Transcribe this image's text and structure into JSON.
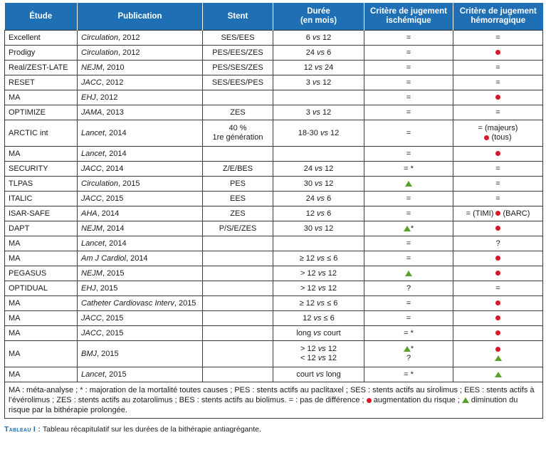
{
  "headers": {
    "etude": "Étude",
    "publication": "Publication",
    "stent": "Stent",
    "duree_1": "Durée",
    "duree_2": "(en mois)",
    "isch_1": "Critère de jugement",
    "isch_2": "ischémique",
    "hemo_1": "Critère de jugement",
    "hemo_2": "hémorragique"
  },
  "rows": [
    {
      "etude": "Excellent",
      "journal": "Circulation",
      "year": ", 2012",
      "stent": "SES/EES",
      "duree": [
        "6 vs 12"
      ],
      "isch": [
        {
          "t": "="
        }
      ],
      "hemo": [
        {
          "t": "="
        }
      ]
    },
    {
      "etude": "Prodigy",
      "journal": "Circulation",
      "year": ", 2012",
      "stent": "PES/EES/ZES",
      "duree": [
        "24 vs 6"
      ],
      "isch": [
        {
          "t": "="
        }
      ],
      "hemo": [
        {
          "icon": "red-dot"
        }
      ]
    },
    {
      "etude": "Real/ZEST-LATE",
      "journal": "NEJM",
      "year": ", 2010",
      "stent": "PES/SES/ZES",
      "duree": [
        "12 vs 24"
      ],
      "isch": [
        {
          "t": "="
        }
      ],
      "hemo": [
        {
          "t": "="
        }
      ]
    },
    {
      "etude": "RESET",
      "journal": "JACC",
      "year": ", 2012",
      "stent": "SES/EES/PES",
      "duree": [
        "3 vs 12"
      ],
      "isch": [
        {
          "t": "="
        }
      ],
      "hemo": [
        {
          "t": "="
        }
      ]
    },
    {
      "etude": "MA",
      "journal": "EHJ",
      "year": ", 2012",
      "stent": "",
      "duree": [
        ""
      ],
      "isch": [
        {
          "t": "="
        }
      ],
      "hemo": [
        {
          "icon": "red-dot"
        }
      ]
    },
    {
      "etude": "OPTIMIZE",
      "journal": "JAMA",
      "year": ", 2013",
      "stent": "ZES",
      "duree": [
        "3 vs 12"
      ],
      "isch": [
        {
          "t": "="
        }
      ],
      "hemo": [
        {
          "t": "="
        }
      ]
    },
    {
      "etude": "ARCTIC int",
      "journal": "Lancet",
      "year": ", 2014",
      "stent_lines": [
        "40 %",
        "1re génération"
      ],
      "duree": [
        "18-30 vs 12"
      ],
      "isch": [
        {
          "t": "="
        }
      ],
      "hemo": [
        {
          "t": "= (majeurs)"
        },
        {
          "icon": "red-dot",
          "t": " (tous)"
        }
      ],
      "cls": "tall"
    },
    {
      "etude": "MA",
      "journal": "Lancet",
      "year": ", 2014",
      "stent": "",
      "duree": [
        ""
      ],
      "isch": [
        {
          "t": "="
        }
      ],
      "hemo": [
        {
          "icon": "red-dot"
        }
      ]
    },
    {
      "etude": "SECURITY",
      "journal": "JACC",
      "year": ", 2014",
      "stent": "Z/E/BES",
      "duree": [
        "24 vs 12"
      ],
      "isch": [
        {
          "t": "= *"
        }
      ],
      "hemo": [
        {
          "t": "="
        }
      ]
    },
    {
      "etude": "TLPAS",
      "journal": "Circulation",
      "year": ", 2015",
      "stent": "PES",
      "duree": [
        "30 vs 12"
      ],
      "isch": [
        {
          "icon": "green-triangle"
        }
      ],
      "hemo": [
        {
          "t": "="
        }
      ]
    },
    {
      "etude": "ITALIC",
      "journal": "JACC",
      "year": ", 2015",
      "stent": "EES",
      "duree": [
        "24 vs 6"
      ],
      "isch": [
        {
          "t": "="
        }
      ],
      "hemo": [
        {
          "t": "="
        }
      ]
    },
    {
      "etude": "ISAR-SAFE",
      "journal": "AHA",
      "year": ", 2014",
      "stent": "ZES",
      "duree": [
        "12 vs 6"
      ],
      "isch": [
        {
          "t": "="
        }
      ],
      "hemo": [
        {
          "t": "= (TIMI) ",
          "icon2": "red-dot",
          "t2": " (BARC)"
        }
      ]
    },
    {
      "etude": "DAPT",
      "journal": "NEJM",
      "year": ", 2014",
      "stent": "P/S/E/ZES",
      "duree": [
        "30 vs 12"
      ],
      "isch": [
        {
          "icon": "green-triangle",
          "t": "*"
        }
      ],
      "hemo": [
        {
          "icon": "red-dot"
        }
      ]
    },
    {
      "etude": "MA",
      "journal": "Lancet",
      "year": ", 2014",
      "stent": "",
      "duree": [
        ""
      ],
      "isch": [
        {
          "t": "="
        }
      ],
      "hemo": [
        {
          "t": "?"
        }
      ]
    },
    {
      "etude": "MA",
      "journal": "Am J Cardiol",
      "year": ", 2014",
      "stent": "",
      "duree": [
        "≥ 12 vs ≤ 6"
      ],
      "isch": [
        {
          "t": "="
        }
      ],
      "hemo": [
        {
          "icon": "red-dot"
        }
      ]
    },
    {
      "etude": "PEGASUS",
      "journal": "NEJM",
      "year": ", 2015",
      "stent": "",
      "duree": [
        "> 12 vs 12"
      ],
      "isch": [
        {
          "icon": "green-triangle"
        }
      ],
      "hemo": [
        {
          "icon": "red-dot"
        }
      ]
    },
    {
      "etude": "OPTIDUAL",
      "journal": "EHJ",
      "year": ", 2015",
      "stent": "",
      "duree": [
        "> 12 vs 12"
      ],
      "isch": [
        {
          "t": "?"
        }
      ],
      "hemo": [
        {
          "t": "="
        }
      ]
    },
    {
      "etude": "MA",
      "journal": "Catheter Cardiovasc Interv",
      "year": ", 2015",
      "stent": "",
      "duree": [
        "≥ 12 vs ≤ 6"
      ],
      "isch": [
        {
          "t": "="
        }
      ],
      "hemo": [
        {
          "icon": "red-dot"
        }
      ]
    },
    {
      "etude": "MA",
      "journal": "JACC",
      "year": ", 2015",
      "stent": "",
      "duree": [
        "12 vs ≤ 6"
      ],
      "isch": [
        {
          "t": "="
        }
      ],
      "hemo": [
        {
          "icon": "red-dot"
        }
      ]
    },
    {
      "etude": "MA",
      "journal": "JACC",
      "year": ", 2015",
      "stent": "",
      "duree": [
        "long vs court"
      ],
      "isch": [
        {
          "t": "= *"
        }
      ],
      "hemo": [
        {
          "icon": "red-dot"
        }
      ]
    },
    {
      "etude": "MA",
      "journal": "BMJ",
      "year": ", 2015",
      "stent": "",
      "duree": [
        "> 12 vs 12",
        "< 12 vs 12"
      ],
      "isch": [
        {
          "icon": "green-triangle",
          "t": "*"
        },
        {
          "t": "?"
        }
      ],
      "hemo": [
        {
          "icon": "red-dot"
        },
        {
          "icon": "green-triangle"
        }
      ],
      "cls": "tall3"
    },
    {
      "etude": "MA",
      "journal": "Lancet",
      "year": ", 2015",
      "stent": "",
      "duree": [
        "court vs long"
      ],
      "isch": [
        {
          "t": "= *"
        }
      ],
      "hemo": [
        {
          "icon": "green-triangle"
        }
      ]
    }
  ],
  "footnote": {
    "p1": "MA : méta-analyse ; * : majoration de la mortalité toutes causes ; PES : stents actifs au paclitaxel ; SES : stents actifs au sirolimus ; EES : stents actifs à l’évérolimus ; ZES : stents actifs au zotarolimus ; BES : stents actifs au biolimus. = : pas de différence ; ",
    "p2": " augmentation du risque ; ",
    "p3": " diminution du risque par la bithérapie prolongée."
  },
  "caption": {
    "label": "Tableau I :",
    "text": " Tableau récapitulatif sur les durées de la bithérapie antiagrégante."
  },
  "colors": {
    "header_bg": "#1f6fb5",
    "red": "#d7182a",
    "green": "#5aa02c"
  }
}
